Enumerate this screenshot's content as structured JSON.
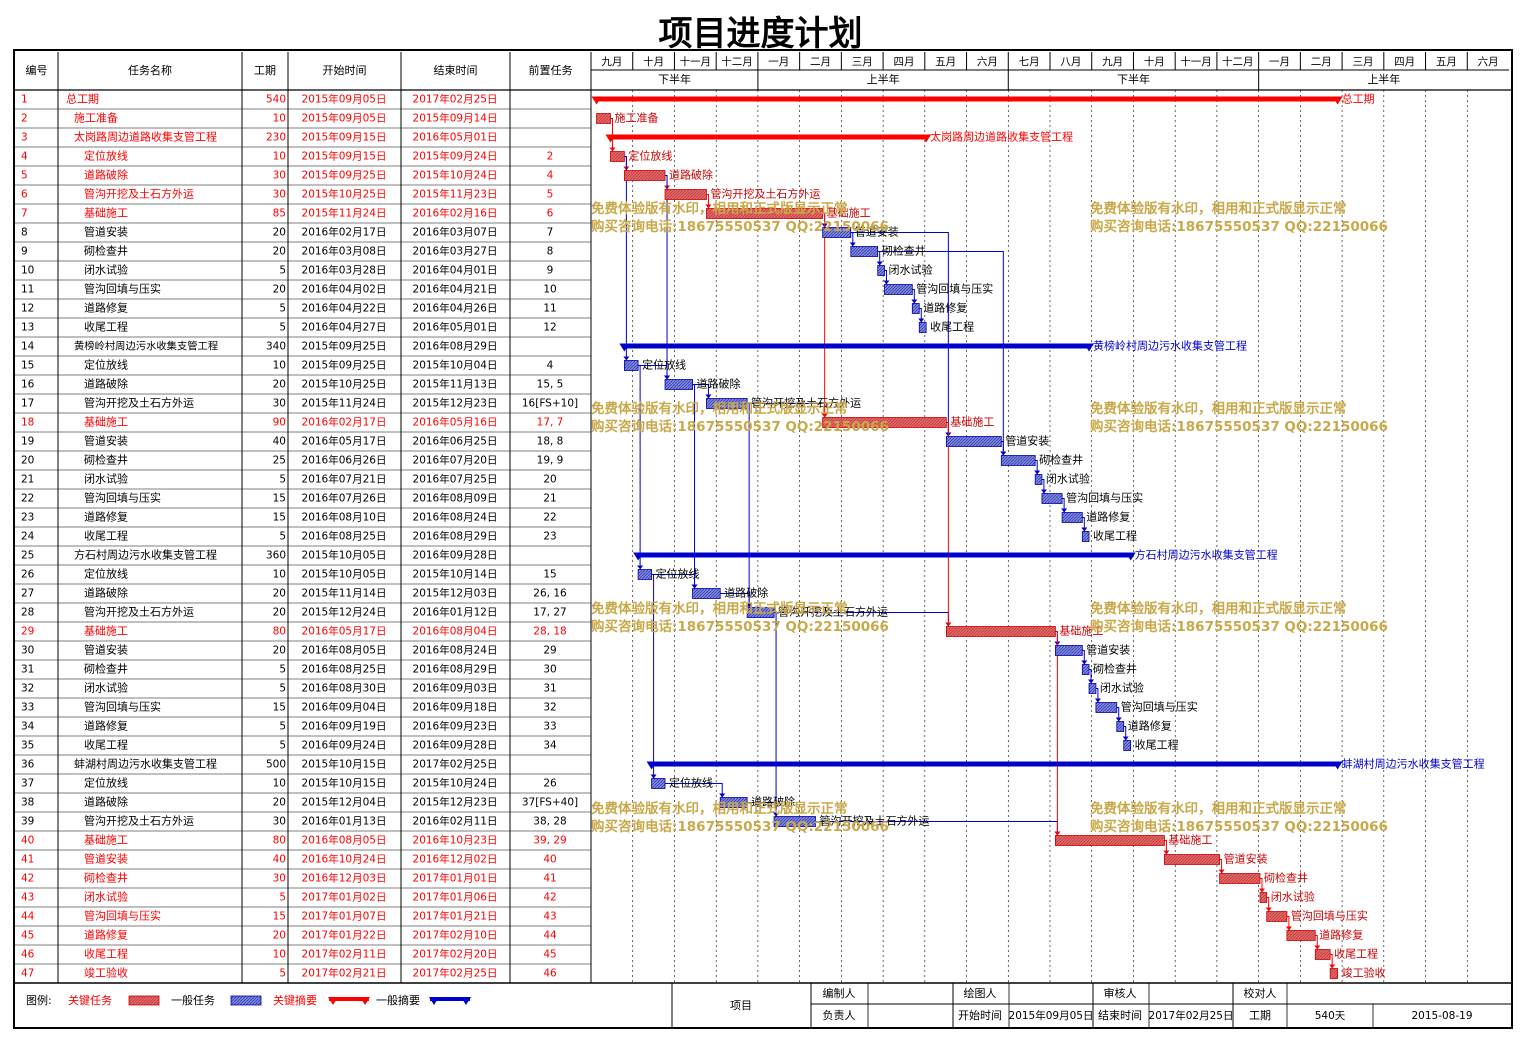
{
  "title": "项目进度计划",
  "columns": [
    "编号",
    "任务名称",
    "工期",
    "开始时间",
    "结束时间",
    "前置任务"
  ],
  "timescale": {
    "months": [
      "九月",
      "十月",
      "十一月",
      "十二月",
      "一月",
      "二月",
      "三月",
      "四月",
      "五月",
      "六月",
      "七月",
      "八月",
      "九月",
      "十月",
      "十一月",
      "十二月",
      "一月",
      "二月",
      "三月",
      "四月",
      "五月",
      "六月"
    ],
    "halves": [
      "下半年",
      "上半年",
      "下半年",
      "上半年"
    ]
  },
  "watermark": [
    "免费体验版有水印，相用和正式版显示正常",
    "购买咨询电话:18675550537 QQ:22150066"
  ],
  "chart_data": {
    "type": "gantt",
    "title": "项目进度计划",
    "x_range": [
      "2015-09-01",
      "2017-06-30"
    ],
    "tasks": [
      {
        "id": "1",
        "name": "总工期",
        "dur": "540",
        "start": "2015年09月05日",
        "end": "2017年02月25日",
        "pred": "",
        "level": 0,
        "kind": "critical-summary"
      },
      {
        "id": "2",
        "name": "施工准备",
        "dur": "10",
        "start": "2015年09月05日",
        "end": "2015年09月14日",
        "pred": "",
        "level": 1,
        "kind": "critical"
      },
      {
        "id": "3",
        "name": "太岗路周边道路收集支管工程",
        "dur": "230",
        "start": "2015年09月15日",
        "end": "2016年05月01日",
        "pred": "",
        "level": 1,
        "kind": "critical-summary"
      },
      {
        "id": "4",
        "name": "定位放线",
        "dur": "10",
        "start": "2015年09月15日",
        "end": "2015年09月24日",
        "pred": "2",
        "level": 2,
        "kind": "critical"
      },
      {
        "id": "5",
        "name": "道路破除",
        "dur": "30",
        "start": "2015年09月25日",
        "end": "2015年10月24日",
        "pred": "4",
        "level": 2,
        "kind": "critical"
      },
      {
        "id": "6",
        "name": "管沟开挖及土石方外运",
        "dur": "30",
        "start": "2015年10月25日",
        "end": "2015年11月23日",
        "pred": "5",
        "level": 2,
        "kind": "critical"
      },
      {
        "id": "7",
        "name": "基础施工",
        "dur": "85",
        "start": "2015年11月24日",
        "end": "2016年02月16日",
        "pred": "6",
        "level": 2,
        "kind": "critical"
      },
      {
        "id": "8",
        "name": "管道安装",
        "dur": "20",
        "start": "2016年02月17日",
        "end": "2016年03月07日",
        "pred": "7",
        "level": 2,
        "kind": "task"
      },
      {
        "id": "9",
        "name": "砌检查井",
        "dur": "20",
        "start": "2016年03月08日",
        "end": "2016年03月27日",
        "pred": "8",
        "level": 2,
        "kind": "task"
      },
      {
        "id": "10",
        "name": "闭水试验",
        "dur": "5",
        "start": "2016年03月28日",
        "end": "2016年04月01日",
        "pred": "9",
        "level": 2,
        "kind": "task"
      },
      {
        "id": "11",
        "name": "管沟回填与压实",
        "dur": "20",
        "start": "2016年04月02日",
        "end": "2016年04月21日",
        "pred": "10",
        "level": 2,
        "kind": "task"
      },
      {
        "id": "12",
        "name": "道路修复",
        "dur": "5",
        "start": "2016年04月22日",
        "end": "2016年04月26日",
        "pred": "11",
        "level": 2,
        "kind": "task"
      },
      {
        "id": "13",
        "name": "收尾工程",
        "dur": "5",
        "start": "2016年04月27日",
        "end": "2016年05月01日",
        "pred": "12",
        "level": 2,
        "kind": "task"
      },
      {
        "id": "14",
        "name": "黄榜岭村周边污水收集支管工程",
        "dur": "340",
        "start": "2015年09月25日",
        "end": "2016年08月29日",
        "pred": "",
        "level": 1,
        "kind": "summary"
      },
      {
        "id": "15",
        "name": "定位放线",
        "dur": "10",
        "start": "2015年09月25日",
        "end": "2015年10月04日",
        "pred": "4",
        "level": 2,
        "kind": "task"
      },
      {
        "id": "16",
        "name": "道路破除",
        "dur": "20",
        "start": "2015年10月25日",
        "end": "2015年11月13日",
        "pred": "15, 5",
        "level": 2,
        "kind": "task"
      },
      {
        "id": "17",
        "name": "管沟开挖及土石方外运",
        "dur": "30",
        "start": "2015年11月24日",
        "end": "2015年12月23日",
        "pred": "16[FS+10]",
        "level": 2,
        "kind": "task"
      },
      {
        "id": "18",
        "name": "基础施工",
        "dur": "90",
        "start": "2016年02月17日",
        "end": "2016年05月16日",
        "pred": "17, 7",
        "level": 2,
        "kind": "critical"
      },
      {
        "id": "19",
        "name": "管道安装",
        "dur": "40",
        "start": "2016年05月17日",
        "end": "2016年06月25日",
        "pred": "18, 8",
        "level": 2,
        "kind": "task"
      },
      {
        "id": "20",
        "name": "砌检查井",
        "dur": "25",
        "start": "2016年06月26日",
        "end": "2016年07月20日",
        "pred": "19, 9",
        "level": 2,
        "kind": "task"
      },
      {
        "id": "21",
        "name": "闭水试验",
        "dur": "5",
        "start": "2016年07月21日",
        "end": "2016年07月25日",
        "pred": "20",
        "level": 2,
        "kind": "task"
      },
      {
        "id": "22",
        "name": "管沟回填与压实",
        "dur": "15",
        "start": "2016年07月26日",
        "end": "2016年08月09日",
        "pred": "21",
        "level": 2,
        "kind": "task"
      },
      {
        "id": "23",
        "name": "道路修复",
        "dur": "15",
        "start": "2016年08月10日",
        "end": "2016年08月24日",
        "pred": "22",
        "level": 2,
        "kind": "task"
      },
      {
        "id": "24",
        "name": "收尾工程",
        "dur": "5",
        "start": "2016年08月25日",
        "end": "2016年08月29日",
        "pred": "23",
        "level": 2,
        "kind": "task"
      },
      {
        "id": "25",
        "name": "方石村周边污水收集支管工程",
        "dur": "360",
        "start": "2015年10月05日",
        "end": "2016年09月28日",
        "pred": "",
        "level": 1,
        "kind": "summary"
      },
      {
        "id": "26",
        "name": "定位放线",
        "dur": "10",
        "start": "2015年10月05日",
        "end": "2015年10月14日",
        "pred": "15",
        "level": 2,
        "kind": "task"
      },
      {
        "id": "27",
        "name": "道路破除",
        "dur": "20",
        "start": "2015年11月14日",
        "end": "2015年12月03日",
        "pred": "26, 16",
        "level": 2,
        "kind": "task"
      },
      {
        "id": "28",
        "name": "管沟开挖及土石方外运",
        "dur": "20",
        "start": "2015年12月24日",
        "end": "2016年01月12日",
        "pred": "17, 27",
        "level": 2,
        "kind": "task"
      },
      {
        "id": "29",
        "name": "基础施工",
        "dur": "80",
        "start": "2016年05月17日",
        "end": "2016年08月04日",
        "pred": "28, 18",
        "level": 2,
        "kind": "critical"
      },
      {
        "id": "30",
        "name": "管道安装",
        "dur": "20",
        "start": "2016年08月05日",
        "end": "2016年08月24日",
        "pred": "29",
        "level": 2,
        "kind": "task"
      },
      {
        "id": "31",
        "name": "砌检查井",
        "dur": "5",
        "start": "2016年08月25日",
        "end": "2016年08月29日",
        "pred": "30",
        "level": 2,
        "kind": "task"
      },
      {
        "id": "32",
        "name": "闭水试验",
        "dur": "5",
        "start": "2016年08月30日",
        "end": "2016年09月03日",
        "pred": "31",
        "level": 2,
        "kind": "task"
      },
      {
        "id": "33",
        "name": "管沟回填与压实",
        "dur": "15",
        "start": "2016年09月04日",
        "end": "2016年09月18日",
        "pred": "32",
        "level": 2,
        "kind": "task"
      },
      {
        "id": "34",
        "name": "道路修复",
        "dur": "5",
        "start": "2016年09月19日",
        "end": "2016年09月23日",
        "pred": "33",
        "level": 2,
        "kind": "task"
      },
      {
        "id": "35",
        "name": "收尾工程",
        "dur": "5",
        "start": "2016年09月24日",
        "end": "2016年09月28日",
        "pred": "34",
        "level": 2,
        "kind": "task"
      },
      {
        "id": "36",
        "name": "蚌湖村周边污水收集支管工程",
        "dur": "500",
        "start": "2015年10月15日",
        "end": "2017年02月25日",
        "pred": "",
        "level": 1,
        "kind": "summary"
      },
      {
        "id": "37",
        "name": "定位放线",
        "dur": "10",
        "start": "2015年10月15日",
        "end": "2015年10月24日",
        "pred": "26",
        "level": 2,
        "kind": "task"
      },
      {
        "id": "38",
        "name": "道路破除",
        "dur": "20",
        "start": "2015年12月04日",
        "end": "2015年12月23日",
        "pred": "37[FS+40]",
        "level": 2,
        "kind": "task"
      },
      {
        "id": "39",
        "name": "管沟开挖及土石方外运",
        "dur": "30",
        "start": "2016年01月13日",
        "end": "2016年02月11日",
        "pred": "38, 28",
        "level": 2,
        "kind": "task"
      },
      {
        "id": "40",
        "name": "基础施工",
        "dur": "80",
        "start": "2016年08月05日",
        "end": "2016年10月23日",
        "pred": "39, 29",
        "level": 2,
        "kind": "critical"
      },
      {
        "id": "41",
        "name": "管道安装",
        "dur": "40",
        "start": "2016年10月24日",
        "end": "2016年12月02日",
        "pred": "40",
        "level": 2,
        "kind": "critical"
      },
      {
        "id": "42",
        "name": "砌检查井",
        "dur": "30",
        "start": "2016年12月03日",
        "end": "2017年01月01日",
        "pred": "41",
        "level": 2,
        "kind": "critical"
      },
      {
        "id": "43",
        "name": "闭水试验",
        "dur": "5",
        "start": "2017年01月02日",
        "end": "2017年01月06日",
        "pred": "42",
        "level": 2,
        "kind": "critical"
      },
      {
        "id": "44",
        "name": "管沟回填与压实",
        "dur": "15",
        "start": "2017年01月07日",
        "end": "2017年01月21日",
        "pred": "43",
        "level": 2,
        "kind": "critical"
      },
      {
        "id": "45",
        "name": "道路修复",
        "dur": "20",
        "start": "2017年01月22日",
        "end": "2017年02月10日",
        "pred": "44",
        "level": 2,
        "kind": "critical"
      },
      {
        "id": "46",
        "name": "收尾工程",
        "dur": "10",
        "start": "2017年02月11日",
        "end": "2017年02月20日",
        "pred": "45",
        "level": 2,
        "kind": "critical"
      },
      {
        "id": "47",
        "name": "竣工验收",
        "dur": "5",
        "start": "2017年02月21日",
        "end": "2017年02月25日",
        "pred": "46",
        "level": 2,
        "kind": "critical"
      }
    ]
  },
  "legend": {
    "label": "图例:",
    "critical": "关键任务",
    "task": "一般任务",
    "critical_summary": "关键摘要",
    "summary": "一般摘要"
  },
  "footer": {
    "project_label": "项目",
    "editor_label": "编制人",
    "drawer_label": "绘图人",
    "reviewer_label": "审核人",
    "checker_label": "校对人",
    "owner_label": "负责人",
    "start_label": "开始时间",
    "start": "2015年09月05日",
    "end_label": "结束时间",
    "end": "2017年02月25日",
    "duration_label": "工期",
    "duration": "540天",
    "date": "2015-08-19"
  },
  "colors": {
    "critical": "#ff0000",
    "task": "#0000cc",
    "critical_fill": "#e06666",
    "task_fill": "#6a7ad8"
  }
}
